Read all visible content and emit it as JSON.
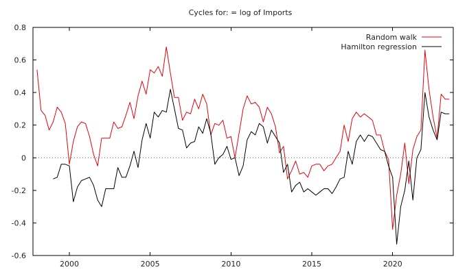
{
  "chart_data": {
    "type": "line",
    "title": "Cycles for: = log of Imports",
    "xlabel": "",
    "ylabel": "",
    "xlim": [
      1997.75,
      2023.75
    ],
    "ylim": [
      -0.6,
      0.8
    ],
    "x_ticks": [
      2000,
      2005,
      2010,
      2015,
      2020
    ],
    "y_ticks": [
      -0.6,
      -0.4,
      -0.2,
      0,
      0.2,
      0.4,
      0.6,
      0.8
    ],
    "y_tick_labels": [
      "-0.6",
      "-0.4",
      "-0.2",
      "0",
      "0.2",
      "0.4",
      "0.6",
      "0.8"
    ],
    "grid": false,
    "zero_line": "dotted",
    "legend_position": "top-right",
    "series": [
      {
        "name": "Random walk",
        "color": "#e4020a",
        "x": [
          1998.0,
          1998.25,
          1998.5,
          1998.75,
          1999.0,
          1999.25,
          1999.5,
          1999.75,
          2000.0,
          2000.25,
          2000.5,
          2000.75,
          2001.0,
          2001.25,
          2001.5,
          2001.75,
          2002.0,
          2002.25,
          2002.5,
          2002.75,
          2003.0,
          2003.25,
          2003.5,
          2003.75,
          2004.0,
          2004.25,
          2004.5,
          2004.75,
          2005.0,
          2005.25,
          2005.5,
          2005.75,
          2006.0,
          2006.25,
          2006.5,
          2006.75,
          2007.0,
          2007.25,
          2007.5,
          2007.75,
          2008.0,
          2008.25,
          2008.5,
          2008.75,
          2009.0,
          2009.25,
          2009.5,
          2009.75,
          2010.0,
          2010.25,
          2010.5,
          2010.75,
          2011.0,
          2011.25,
          2011.5,
          2011.75,
          2012.0,
          2012.25,
          2012.5,
          2012.75,
          2013.0,
          2013.25,
          2013.5,
          2013.75,
          2014.0,
          2014.25,
          2014.5,
          2014.75,
          2015.0,
          2015.25,
          2015.5,
          2015.75,
          2016.0,
          2016.25,
          2016.5,
          2016.75,
          2017.0,
          2017.25,
          2017.5,
          2017.75,
          2018.0,
          2018.25,
          2018.5,
          2018.75,
          2019.0,
          2019.25,
          2019.5,
          2019.75,
          2020.0,
          2020.25,
          2020.5,
          2020.75,
          2021.0,
          2021.25,
          2021.5,
          2021.75,
          2022.0,
          2022.25,
          2022.5,
          2022.75,
          2023.0,
          2023.25,
          2023.5
        ],
        "values": [
          0.54,
          0.29,
          0.26,
          0.17,
          0.22,
          0.31,
          0.28,
          0.21,
          -0.04,
          0.1,
          0.19,
          0.22,
          0.21,
          0.13,
          0.02,
          -0.05,
          0.12,
          0.12,
          0.12,
          0.22,
          0.18,
          0.19,
          0.26,
          0.34,
          0.24,
          0.38,
          0.47,
          0.39,
          0.54,
          0.52,
          0.56,
          0.5,
          0.68,
          0.52,
          0.37,
          0.37,
          0.23,
          0.28,
          0.27,
          0.36,
          0.3,
          0.39,
          0.33,
          0.14,
          0.21,
          0.2,
          0.23,
          0.12,
          0.13,
          0.0,
          0.15,
          0.3,
          0.38,
          0.33,
          0.34,
          0.31,
          0.22,
          0.31,
          0.27,
          0.19,
          0.03,
          0.07,
          -0.13,
          -0.08,
          -0.02,
          -0.1,
          -0.09,
          -0.12,
          -0.05,
          -0.04,
          -0.04,
          -0.08,
          -0.05,
          -0.04,
          0.0,
          0.04,
          0.2,
          0.1,
          0.24,
          0.28,
          0.25,
          0.27,
          0.25,
          0.23,
          0.14,
          0.14,
          0.04,
          -0.01,
          -0.44,
          -0.23,
          -0.1,
          0.09,
          -0.16,
          0.05,
          0.13,
          0.17,
          0.66,
          0.42,
          0.25,
          0.12,
          0.39,
          0.36,
          0.36
        ]
      },
      {
        "name": "Hamilton regression",
        "color": "#000000",
        "x": [
          1999.0,
          1999.25,
          1999.5,
          1999.75,
          2000.0,
          2000.25,
          2000.5,
          2000.75,
          2001.0,
          2001.25,
          2001.5,
          2001.75,
          2002.0,
          2002.25,
          2002.5,
          2002.75,
          2003.0,
          2003.25,
          2003.5,
          2003.75,
          2004.0,
          2004.25,
          2004.5,
          2004.75,
          2005.0,
          2005.25,
          2005.5,
          2005.75,
          2006.0,
          2006.25,
          2006.5,
          2006.75,
          2007.0,
          2007.25,
          2007.5,
          2007.75,
          2008.0,
          2008.25,
          2008.5,
          2008.75,
          2009.0,
          2009.25,
          2009.5,
          2009.75,
          2010.0,
          2010.25,
          2010.5,
          2010.75,
          2011.0,
          2011.25,
          2011.5,
          2011.75,
          2012.0,
          2012.25,
          2012.5,
          2012.75,
          2013.0,
          2013.25,
          2013.5,
          2013.75,
          2014.0,
          2014.25,
          2014.5,
          2014.75,
          2015.0,
          2015.25,
          2015.5,
          2015.75,
          2016.0,
          2016.25,
          2016.5,
          2016.75,
          2017.0,
          2017.25,
          2017.5,
          2017.75,
          2018.0,
          2018.25,
          2018.5,
          2018.75,
          2019.0,
          2019.25,
          2019.5,
          2019.75,
          2020.0,
          2020.25,
          2020.5,
          2020.75,
          2021.0,
          2021.25,
          2021.5,
          2021.75,
          2022.0,
          2022.25,
          2022.5,
          2022.75,
          2023.0,
          2023.25,
          2023.5
        ],
        "values": [
          -0.13,
          -0.12,
          -0.04,
          -0.04,
          -0.05,
          -0.27,
          -0.18,
          -0.14,
          -0.13,
          -0.12,
          -0.17,
          -0.26,
          -0.3,
          -0.19,
          -0.19,
          -0.19,
          -0.06,
          -0.12,
          -0.12,
          -0.05,
          0.04,
          -0.06,
          0.11,
          0.21,
          0.12,
          0.28,
          0.25,
          0.29,
          0.28,
          0.42,
          0.3,
          0.18,
          0.17,
          0.06,
          0.09,
          0.1,
          0.19,
          0.15,
          0.24,
          0.15,
          -0.04,
          0.0,
          0.02,
          0.07,
          -0.01,
          0.0,
          -0.11,
          -0.05,
          0.11,
          0.16,
          0.14,
          0.21,
          0.19,
          0.09,
          0.17,
          0.13,
          0.09,
          -0.09,
          -0.04,
          -0.21,
          -0.17,
          -0.15,
          -0.21,
          -0.19,
          -0.21,
          -0.23,
          -0.21,
          -0.19,
          -0.19,
          -0.22,
          -0.18,
          -0.13,
          -0.12,
          0.04,
          -0.04,
          0.1,
          0.14,
          0.1,
          0.14,
          0.13,
          0.09,
          0.05,
          0.04,
          -0.05,
          -0.12,
          -0.53,
          -0.3,
          -0.2,
          -0.02,
          -0.26,
          0.0,
          0.05,
          0.4,
          0.25,
          0.17,
          0.11,
          0.28,
          0.27,
          0.27
        ]
      }
    ]
  }
}
